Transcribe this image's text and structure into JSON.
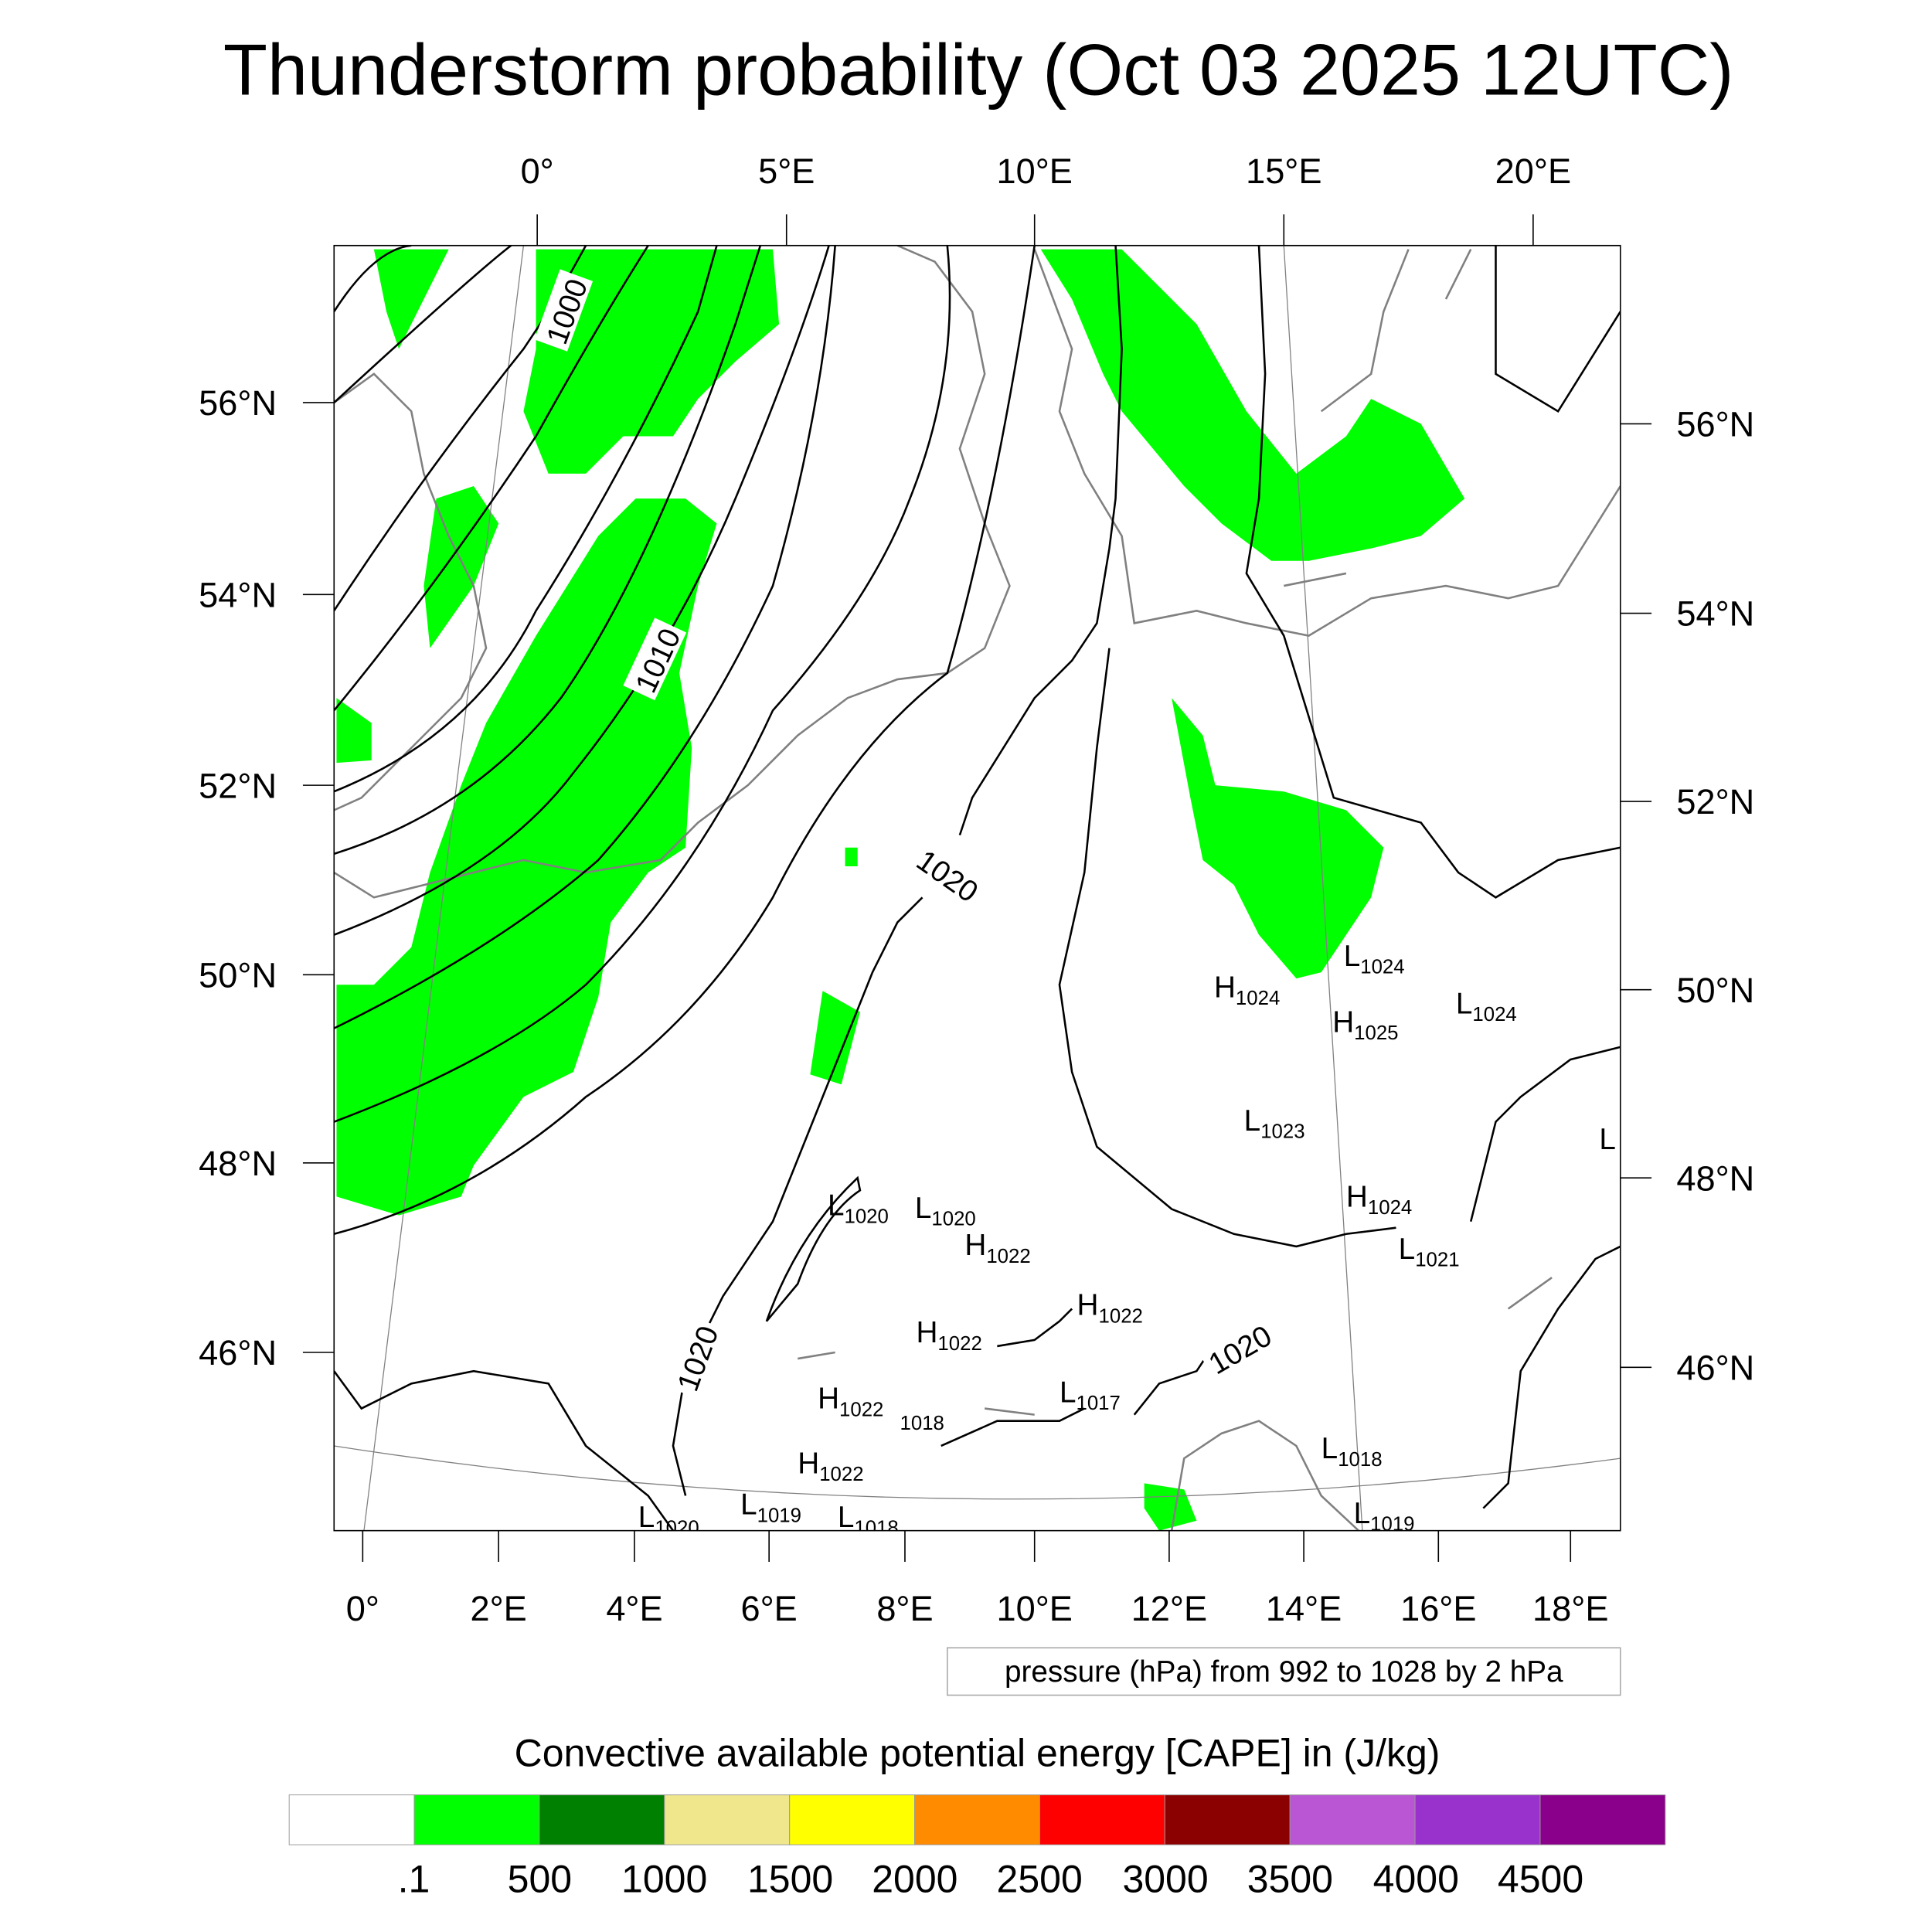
{
  "title": "Thunderstorm probability (Oct 03 2025 12UTC)",
  "top_lon_labels": [
    "0°",
    "5°E",
    "10°E",
    "15°E",
    "20°E"
  ],
  "bottom_lon_labels": [
    "0°",
    "2°E",
    "4°E",
    "6°E",
    "8°E",
    "10°E",
    "12°E",
    "14°E",
    "16°E",
    "18°E"
  ],
  "left_lat_labels": [
    "56°N",
    "54°N",
    "52°N",
    "50°N",
    "48°N",
    "46°N"
  ],
  "right_lat_labels": [
    "56°N",
    "54°N",
    "52°N",
    "50°N",
    "48°N",
    "46°N"
  ],
  "isobar_labels": [
    "1000",
    "1010",
    "1020",
    "1020",
    "1020"
  ],
  "pressure_centers": [
    {
      "type": "L",
      "value": "1024"
    },
    {
      "type": "H",
      "value": "1024"
    },
    {
      "type": "L",
      "value": "1024"
    },
    {
      "type": "H",
      "value": "1025"
    },
    {
      "type": "L",
      "value": "1023"
    },
    {
      "type": "L",
      "value": ""
    },
    {
      "type": "H",
      "value": "1024"
    },
    {
      "type": "L",
      "value": "1021"
    },
    {
      "type": "L",
      "value": "1020"
    },
    {
      "type": "L",
      "value": "1020"
    },
    {
      "type": "H",
      "value": "1022"
    },
    {
      "type": "H",
      "value": "1022"
    },
    {
      "type": "H",
      "value": "1022"
    },
    {
      "type": "L",
      "value": "1017"
    },
    {
      "type": "H",
      "value": "1022"
    },
    {
      "type": "",
      "value": "1018"
    },
    {
      "type": "H",
      "value": "1022"
    },
    {
      "type": "L",
      "value": "1018"
    },
    {
      "type": "L",
      "value": "1019"
    },
    {
      "type": "L",
      "value": "1020"
    },
    {
      "type": "L",
      "value": "1019"
    },
    {
      "type": "L",
      "value": "1018"
    }
  ],
  "contour_info": "pressure (hPa) from 992 to 1028 by 2 hPa",
  "colorbar": {
    "title": "Convective available potential energy [CAPE] in (J/kg)",
    "colors": [
      "#ffffff",
      "#00ff00",
      "#008000",
      "#f0e68c",
      "#ffff00",
      "#ff8c00",
      "#ff0000",
      "#8b0000",
      "#ba55d3",
      "#9932cc",
      "#8b008b"
    ],
    "labels": [
      ".1",
      "500",
      "1000",
      "1500",
      "2000",
      "2500",
      "3000",
      "3500",
      "4000",
      "4500"
    ]
  },
  "colors": {
    "cape_shading": "#00ff00",
    "coast": "#808080",
    "isobar": "#000000"
  }
}
